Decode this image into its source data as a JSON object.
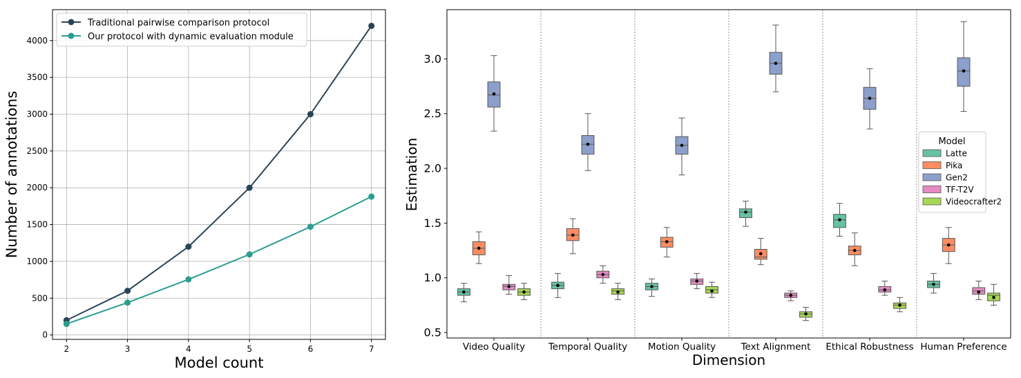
{
  "chart_data": [
    {
      "type": "line",
      "xlabel": "Model count",
      "ylabel": "Number of annotations",
      "x": [
        2,
        3,
        4,
        5,
        6,
        7
      ],
      "xticks": [
        "2",
        "3",
        "4",
        "5",
        "6",
        "7"
      ],
      "yticks": [
        "0",
        "500",
        "1000",
        "1500",
        "2000",
        "2500",
        "3000",
        "3500",
        "4000"
      ],
      "xlim": [
        1.77,
        7.23
      ],
      "ylim": [
        -60,
        4420
      ],
      "grid": true,
      "legend_position": "top-left",
      "series": [
        {
          "name": "Traditional pairwise comparison protocol",
          "color": "#2a4457",
          "values": [
            200,
            600,
            1200,
            2000,
            3000,
            4200
          ]
        },
        {
          "name": "Our protocol with dynamic evaluation module",
          "color": "#2a9d8f",
          "values": [
            150,
            440,
            755,
            1095,
            1470,
            1880
          ]
        }
      ]
    },
    {
      "type": "box",
      "xlabel": "Dimension",
      "ylabel": "Estimation",
      "ylim": [
        0.45,
        3.45
      ],
      "yticks": [
        "0.5",
        "1.0",
        "1.5",
        "2.0",
        "2.5",
        "3.0"
      ],
      "legend_title": "Model",
      "legend_position": "right",
      "categories": [
        "Video Quality",
        "Temporal Quality",
        "Motion Quality",
        "Text Alignment",
        "Ethical Robustness",
        "Human Preference"
      ],
      "series": [
        {
          "name": "Latte",
          "color": "#66c2a5",
          "boxes": [
            {
              "min": 0.78,
              "q1": 0.84,
              "median": 0.87,
              "q3": 0.9,
              "max": 0.95,
              "mean": 0.87
            },
            {
              "min": 0.82,
              "q1": 0.9,
              "median": 0.93,
              "q3": 0.96,
              "max": 1.04,
              "mean": 0.93
            },
            {
              "min": 0.83,
              "q1": 0.89,
              "median": 0.92,
              "q3": 0.95,
              "max": 0.99,
              "mean": 0.92
            },
            {
              "min": 1.47,
              "q1": 1.55,
              "median": 1.6,
              "q3": 1.63,
              "max": 1.7,
              "mean": 1.6
            },
            {
              "min": 1.38,
              "q1": 1.46,
              "median": 1.53,
              "q3": 1.58,
              "max": 1.68,
              "mean": 1.53
            },
            {
              "min": 0.86,
              "q1": 0.91,
              "median": 0.94,
              "q3": 0.97,
              "max": 1.04,
              "mean": 0.94
            }
          ]
        },
        {
          "name": "Pika",
          "color": "#fc8d62",
          "boxes": [
            {
              "min": 1.13,
              "q1": 1.21,
              "median": 1.27,
              "q3": 1.33,
              "max": 1.42,
              "mean": 1.27
            },
            {
              "min": 1.22,
              "q1": 1.34,
              "median": 1.39,
              "q3": 1.45,
              "max": 1.54,
              "mean": 1.39
            },
            {
              "min": 1.19,
              "q1": 1.28,
              "median": 1.33,
              "q3": 1.37,
              "max": 1.46,
              "mean": 1.33
            },
            {
              "min": 1.12,
              "q1": 1.17,
              "median": 1.19,
              "q3": 1.26,
              "max": 1.36,
              "mean": 1.22
            },
            {
              "min": 1.11,
              "q1": 1.21,
              "median": 1.25,
              "q3": 1.29,
              "max": 1.41,
              "mean": 1.25
            },
            {
              "min": 1.13,
              "q1": 1.24,
              "median": 1.3,
              "q3": 1.36,
              "max": 1.46,
              "mean": 1.3
            }
          ]
        },
        {
          "name": "Gen2",
          "color": "#8da0cb",
          "boxes": [
            {
              "min": 2.34,
              "q1": 2.56,
              "median": 2.67,
              "q3": 2.79,
              "max": 3.03,
              "mean": 2.68
            },
            {
              "min": 1.98,
              "q1": 2.13,
              "median": 2.22,
              "q3": 2.3,
              "max": 2.5,
              "mean": 2.22
            },
            {
              "min": 1.94,
              "q1": 2.13,
              "median": 2.21,
              "q3": 2.29,
              "max": 2.46,
              "mean": 2.21
            },
            {
              "min": 2.7,
              "q1": 2.86,
              "median": 2.96,
              "q3": 3.06,
              "max": 3.31,
              "mean": 2.96
            },
            {
              "min": 2.36,
              "q1": 2.54,
              "median": 2.64,
              "q3": 2.74,
              "max": 2.91,
              "mean": 2.64
            },
            {
              "min": 2.52,
              "q1": 2.75,
              "median": 2.89,
              "q3": 3.01,
              "max": 3.34,
              "mean": 2.89
            }
          ]
        },
        {
          "name": "TF-T2V",
          "color": "#e78ac3",
          "boxes": [
            {
              "min": 0.85,
              "q1": 0.89,
              "median": 0.92,
              "q3": 0.94,
              "max": 1.02,
              "mean": 0.92
            },
            {
              "min": 0.95,
              "q1": 1.0,
              "median": 1.03,
              "q3": 1.06,
              "max": 1.11,
              "mean": 1.03
            },
            {
              "min": 0.9,
              "q1": 0.94,
              "median": 0.97,
              "q3": 0.99,
              "max": 1.04,
              "mean": 0.97
            },
            {
              "min": 0.79,
              "q1": 0.82,
              "median": 0.84,
              "q3": 0.86,
              "max": 0.88,
              "mean": 0.84
            },
            {
              "min": 0.84,
              "q1": 0.87,
              "median": 0.89,
              "q3": 0.92,
              "max": 0.97,
              "mean": 0.89
            },
            {
              "min": 0.8,
              "q1": 0.85,
              "median": 0.88,
              "q3": 0.91,
              "max": 0.97,
              "mean": 0.87
            }
          ]
        },
        {
          "name": "Videocrafter2",
          "color": "#a6d854",
          "boxes": [
            {
              "min": 0.8,
              "q1": 0.84,
              "median": 0.87,
              "q3": 0.9,
              "max": 0.95,
              "mean": 0.87
            },
            {
              "min": 0.8,
              "q1": 0.85,
              "median": 0.88,
              "q3": 0.9,
              "max": 0.95,
              "mean": 0.87
            },
            {
              "min": 0.82,
              "q1": 0.86,
              "median": 0.89,
              "q3": 0.92,
              "max": 0.96,
              "mean": 0.88
            },
            {
              "min": 0.61,
              "q1": 0.64,
              "median": 0.67,
              "q3": 0.69,
              "max": 0.73,
              "mean": 0.67
            },
            {
              "min": 0.69,
              "q1": 0.72,
              "median": 0.75,
              "q3": 0.77,
              "max": 0.82,
              "mean": 0.75
            },
            {
              "min": 0.75,
              "q1": 0.79,
              "median": 0.84,
              "q3": 0.86,
              "max": 0.94,
              "mean": 0.82
            }
          ]
        }
      ]
    }
  ]
}
